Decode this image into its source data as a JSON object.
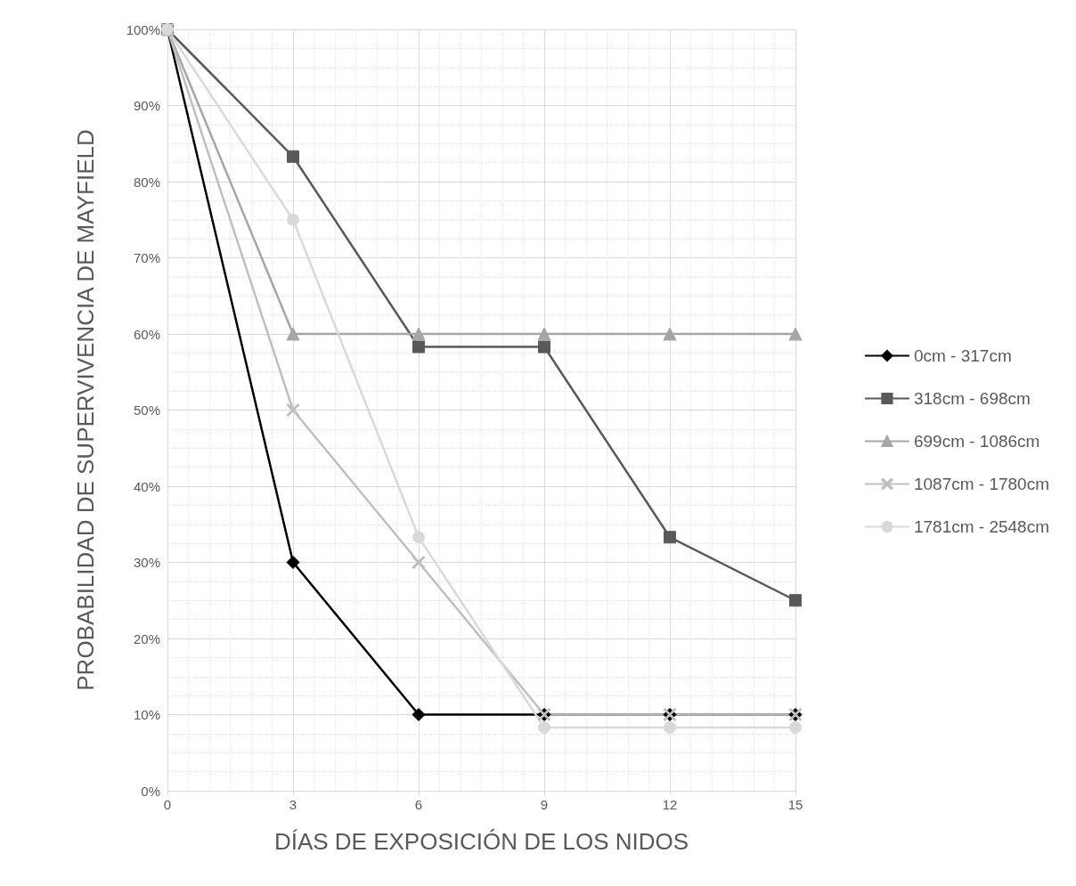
{
  "chart_data": {
    "type": "line",
    "xlabel": "DÍAS DE EXPOSICIÓN DE LOS NIDOS",
    "ylabel": "PROBABILIDAD DE SUPERVIVENCIA DE MAYFIELD",
    "x": [
      0,
      3,
      6,
      9,
      12,
      15
    ],
    "series": [
      {
        "name": "0cm - 317cm",
        "color": "#000000",
        "marker": "diamond",
        "values": [
          100,
          30,
          10,
          10,
          10,
          10
        ]
      },
      {
        "name": "318cm - 698cm",
        "color": "#595959",
        "marker": "square",
        "values": [
          100,
          83.3,
          58.3,
          58.3,
          33.3,
          25
        ]
      },
      {
        "name": "699cm - 1086cm",
        "color": "#a6a6a6",
        "marker": "triangle",
        "values": [
          100,
          60,
          60,
          60,
          60,
          60
        ]
      },
      {
        "name": "1087cm - 1780cm",
        "color": "#bfbfbf",
        "marker": "cross",
        "values": [
          100,
          50,
          30,
          10,
          10,
          10
        ]
      },
      {
        "name": "1781cm - 2548cm",
        "color": "#d9d9d9",
        "marker": "circle",
        "values": [
          100,
          75,
          33.3,
          8.3,
          8.3,
          8.3
        ]
      }
    ],
    "xlim": [
      0,
      15
    ],
    "xticks": [
      0,
      3,
      6,
      9,
      12,
      15
    ],
    "ylim": [
      0,
      100
    ],
    "yticks": [
      {
        "value": 0,
        "label": "0%"
      },
      {
        "value": 10,
        "label": "10%"
      },
      {
        "value": 20,
        "label": "20%"
      },
      {
        "value": 30,
        "label": "30%"
      },
      {
        "value": 40,
        "label": "40%"
      },
      {
        "value": 50,
        "label": "50%"
      },
      {
        "value": 60,
        "label": "60%"
      },
      {
        "value": 70,
        "label": "70%"
      },
      {
        "value": 80,
        "label": "80%"
      },
      {
        "value": 90,
        "label": "90%"
      },
      {
        "value": 100,
        "label": "100%"
      }
    ],
    "grid": true,
    "legend": "right",
    "line_style": "solid"
  }
}
